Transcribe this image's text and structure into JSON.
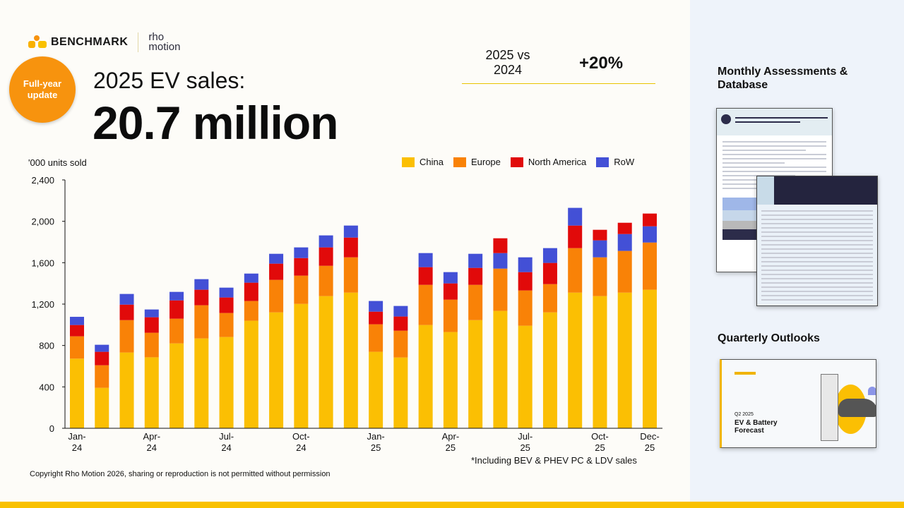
{
  "branding": {
    "company": "BENCHMARK",
    "partner_line1": "rho",
    "partner_line2": "motion"
  },
  "badge": {
    "line1": "Full-year",
    "line2": "update"
  },
  "header": {
    "subtitle": "2025 EV sales:",
    "headline": "20.7 million"
  },
  "kpi": {
    "label_line1": "2025 vs",
    "label_line2": "2024",
    "value": "+20%"
  },
  "right_panel": {
    "monthly_heading_line1": "Monthly Assessments &",
    "monthly_heading_line2": "Database",
    "quarterly_heading": "Quarterly Outlooks",
    "outlook_thumb_period": "Q2 2025",
    "outlook_thumb_title": "EV & Battery Forecast"
  },
  "footnote": "*Including BEV & PHEV PC & LDV sales",
  "copyright": "Copyright Rho Motion 2026, sharing or reproduction is not permitted without permission",
  "colors": {
    "China": "#fbbf03",
    "Europe": "#f98207",
    "North America": "#e10a0a",
    "RoW": "#4350d6",
    "accent": "#f7930e"
  },
  "chart_data": {
    "type": "bar",
    "stacked": true,
    "ylabel": "'000 units sold",
    "ylim": [
      0,
      2400
    ],
    "yticks": [
      0,
      400,
      800,
      1200,
      1600,
      2000,
      2400
    ],
    "ytick_labels": [
      "0",
      "400",
      "800",
      "1,200",
      "1,600",
      "2,000",
      "2,400"
    ],
    "grid": false,
    "legend_position": "top-right",
    "categories": [
      "Jan-24",
      "Feb-24",
      "Mar-24",
      "Apr-24",
      "May-24",
      "Jun-24",
      "Jul-24",
      "Aug-24",
      "Sep-24",
      "Oct-24",
      "Nov-24",
      "Dec-24",
      "Jan-25",
      "Feb-25",
      "Mar-25",
      "Apr-25",
      "May-25",
      "Jun-25",
      "Jul-25",
      "Aug-25",
      "Sep-25",
      "Oct-25",
      "Nov-25",
      "Dec-25"
    ],
    "xtick_labels": [
      {
        "category": "Jan-24",
        "line1": "Jan-",
        "line2": "24"
      },
      {
        "category": "Apr-24",
        "line1": "Apr-",
        "line2": "24"
      },
      {
        "category": "Jul-24",
        "line1": "Jul-",
        "line2": "24"
      },
      {
        "category": "Oct-24",
        "line1": "Oct-",
        "line2": "24"
      },
      {
        "category": "Jan-25",
        "line1": "Jan-",
        "line2": "25"
      },
      {
        "category": "Apr-25",
        "line1": "Apr-",
        "line2": "25"
      },
      {
        "category": "Jul-25",
        "line1": "Jul-",
        "line2": "25"
      },
      {
        "category": "Oct-25",
        "line1": "Oct-",
        "line2": "25"
      },
      {
        "category": "Dec-25",
        "line1": "Dec-",
        "line2": "25"
      }
    ],
    "series": [
      {
        "name": "China",
        "values": [
          673,
          391,
          732,
          686,
          820,
          868,
          882,
          1039,
          1120,
          1202,
          1277,
          1311,
          739,
          684,
          998,
          930,
          1045,
          1134,
          991,
          1120,
          1311,
          1277,
          1311,
          1339
        ]
      },
      {
        "name": "Europe",
        "values": [
          216,
          218,
          313,
          237,
          239,
          321,
          232,
          191,
          314,
          273,
          293,
          341,
          266,
          259,
          388,
          313,
          341,
          409,
          341,
          273,
          430,
          375,
          403,
          456
        ]
      },
      {
        "name": "North America",
        "values": [
          109,
          130,
          150,
          150,
          177,
          150,
          150,
          177,
          157,
          170,
          178,
          191,
          122,
          137,
          171,
          157,
          164,
          143,
          177,
          205,
          218,
          102,
          109,
          123
        ]
      },
      {
        "name": "RoW",
        "values": [
          79,
          68,
          103,
          75,
          82,
          102,
          95,
          88,
          95,
          103,
          116,
          116,
          103,
          102,
          136,
          109,
          136,
          150,
          143,
          143,
          171,
          164,
          163,
          157
        ]
      }
    ],
    "na_stacked_above_row": [
      "Jun-25",
      "Oct-25",
      "Nov-25",
      "Dec-25"
    ]
  }
}
